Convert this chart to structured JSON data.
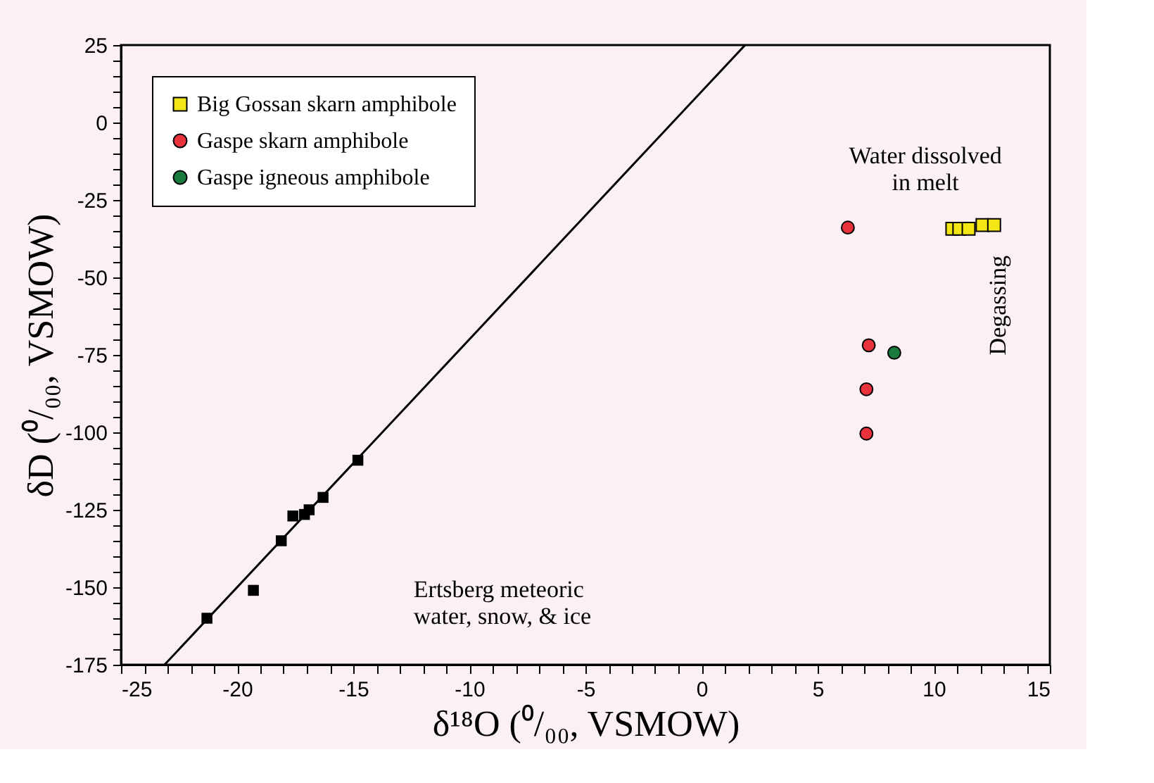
{
  "chart_data": {
    "type": "scatter",
    "xlabel": "δ¹⁸O (⁰/₀₀, VSMOW)",
    "ylabel": "δD (⁰/₀₀, VSMOW)",
    "xlim": [
      -25,
      15
    ],
    "ylim": [
      -175,
      25
    ],
    "xticks": [
      -25,
      {
        "value": -24,
        "label": null
      },
      {
        "value": -23,
        "label": null
      },
      {
        "value": -22,
        "label": null
      },
      {
        "value": -21,
        "label": null
      },
      -20,
      {
        "value": -19,
        "label": null
      },
      {
        "value": -18,
        "label": null
      },
      {
        "value": -17,
        "label": null
      },
      {
        "value": -16,
        "label": null
      },
      -15,
      {
        "value": -14,
        "label": null
      },
      {
        "value": -13,
        "label": null
      },
      {
        "value": -12,
        "label": null
      },
      {
        "value": -11,
        "label": null
      },
      -10,
      {
        "value": -9,
        "label": null
      },
      {
        "value": -8,
        "label": null
      },
      {
        "value": -7,
        "label": null
      },
      {
        "value": -6,
        "label": null
      },
      -5,
      {
        "value": -4,
        "label": null
      },
      {
        "value": -3,
        "label": null
      },
      {
        "value": -2,
        "label": null
      },
      {
        "value": -1,
        "label": null
      },
      0,
      {
        "value": 1,
        "label": null
      },
      {
        "value": 2,
        "label": null
      },
      {
        "value": 3,
        "label": null
      },
      {
        "value": 4,
        "label": null
      },
      5,
      {
        "value": 6,
        "label": null
      },
      {
        "value": 7,
        "label": null
      },
      {
        "value": 8,
        "label": null
      },
      {
        "value": 9,
        "label": null
      },
      10,
      {
        "value": 11,
        "label": null
      },
      {
        "value": 12,
        "label": null
      },
      {
        "value": 13,
        "label": null
      },
      {
        "value": 14,
        "label": null
      },
      15
    ],
    "yticks": [
      -175,
      {
        "value": -170,
        "label": null
      },
      {
        "value": -165,
        "label": null
      },
      {
        "value": -160,
        "label": null
      },
      {
        "value": -155,
        "label": null
      },
      -150,
      {
        "value": -145,
        "label": null
      },
      {
        "value": -140,
        "label": null
      },
      {
        "value": -135,
        "label": null
      },
      {
        "value": -130,
        "label": null
      },
      -125,
      {
        "value": -120,
        "label": null
      },
      {
        "value": -115,
        "label": null
      },
      {
        "value": -110,
        "label": null
      },
      {
        "value": -105,
        "label": null
      },
      -100,
      {
        "value": -95,
        "label": null
      },
      {
        "value": -90,
        "label": null
      },
      {
        "value": -85,
        "label": null
      },
      {
        "value": -80,
        "label": null
      },
      -75,
      {
        "value": -70,
        "label": null
      },
      {
        "value": -65,
        "label": null
      },
      {
        "value": -60,
        "label": null
      },
      {
        "value": -55,
        "label": null
      },
      -50,
      {
        "value": -45,
        "label": null
      },
      {
        "value": -40,
        "label": null
      },
      {
        "value": -35,
        "label": null
      },
      {
        "value": -30,
        "label": null
      },
      -25,
      {
        "value": -20,
        "label": null
      },
      {
        "value": -15,
        "label": null
      },
      {
        "value": -10,
        "label": null
      },
      {
        "value": -5,
        "label": null
      },
      0,
      {
        "value": 5,
        "label": null
      },
      {
        "value": 10,
        "label": null
      },
      {
        "value": 15,
        "label": null
      },
      {
        "value": 20,
        "label": null
      },
      25
    ],
    "legend": "top left",
    "grid": false,
    "series": [
      {
        "type": "line",
        "color": "#000000",
        "marker": "none",
        "x": [
          -23.125,
          1.875
        ],
        "values": [
          -175,
          25
        ]
      },
      {
        "color": "#000000",
        "marker": "square",
        "x": [
          -14.8,
          -16.3,
          -16.9,
          -17.1,
          -17.6,
          -18.1,
          -19.3,
          -21.3
        ],
        "values": [
          -109,
          -121,
          -125,
          -126.5,
          -127,
          -135,
          -151,
          -160
        ]
      },
      {
        "name": "Big Gossan skarn amphibole",
        "color": "#f2e616",
        "marker": "square",
        "x": [
          10.8,
          11.1,
          11.5,
          12.1,
          12.6
        ],
        "values": [
          -34.3,
          -34.3,
          -34.3,
          -33.1,
          -33.1
        ]
      },
      {
        "name": "Gaspe skarn amphibole",
        "color": "#e8333c",
        "marker": "circle",
        "x": [
          6.3,
          7.2,
          7.1,
          7.1
        ],
        "values": [
          -33.9,
          -71.9,
          -86.1,
          -100.4
        ]
      },
      {
        "name": "Gaspe igneous amphibole",
        "color": "#1b7a3e",
        "marker": "circle",
        "x": [
          8.3
        ],
        "values": [
          -74.3
        ]
      }
    ],
    "annotations": [
      "Water dissolved\nin melt",
      "Degassing",
      "Ertsberg meteoric\nwater, snow, & ice"
    ]
  }
}
